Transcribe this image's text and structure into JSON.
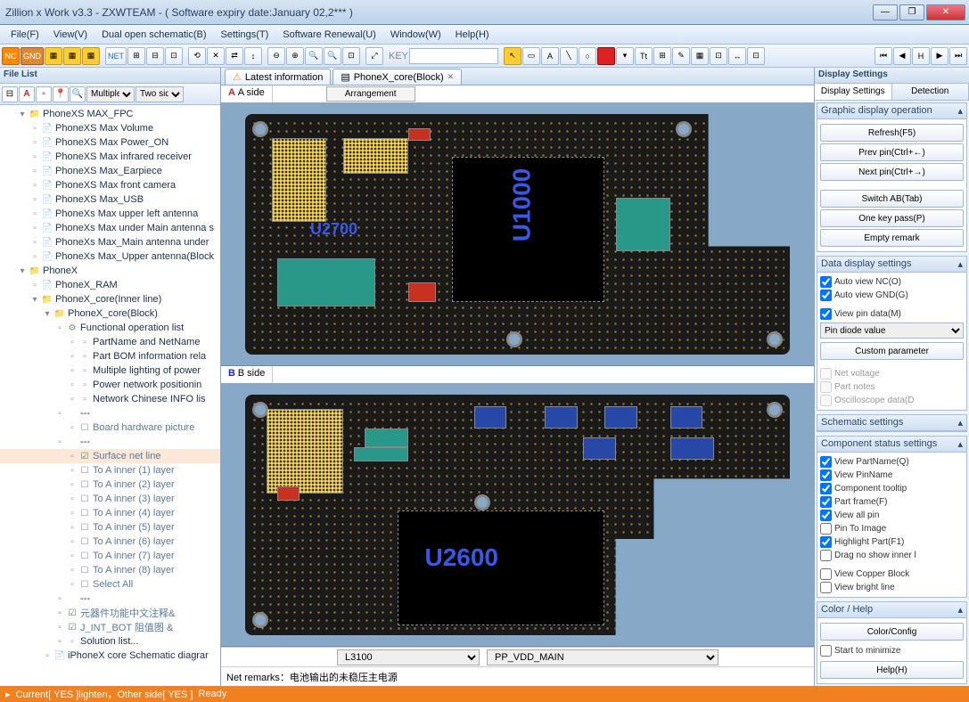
{
  "window": {
    "title": "Zillion x Work v3.3 - ZXWTEAM - ( Software expiry date:January 02,2*** )",
    "min": "—",
    "max": "❐",
    "close": "✕"
  },
  "menu": [
    "File(F)",
    "View(V)",
    "Dual open schematic(B)",
    "Settings(T)",
    "Software Renewal(U)",
    "Window(W)",
    "Help(H)"
  ],
  "toolbar": {
    "nc": "NC",
    "gnd": "GND",
    "net": "NET",
    "key": "KEY"
  },
  "filelist": {
    "title": "File List",
    "filter1": "Multiple f",
    "filter2": "Two side",
    "tree": [
      {
        "d": 1,
        "t": "folder",
        "open": true,
        "label": "PhoneXS MAX_FPC"
      },
      {
        "d": 2,
        "t": "doc",
        "label": "PhoneXS Max Volume"
      },
      {
        "d": 2,
        "t": "doc",
        "label": "PhoneXS Max Power_ON"
      },
      {
        "d": 2,
        "t": "doc",
        "label": "PhoneXS Max infrared receiver"
      },
      {
        "d": 2,
        "t": "doc",
        "label": "PhoneXS Max_Earpiece"
      },
      {
        "d": 2,
        "t": "doc",
        "label": "PhoneXS Max front camera"
      },
      {
        "d": 2,
        "t": "doc",
        "label": "PhoneXS Max_USB"
      },
      {
        "d": 2,
        "t": "doc",
        "label": "PhoneXs Max upper left antenna"
      },
      {
        "d": 2,
        "t": "doc",
        "label": "PhoneXs Max under Main antenna s"
      },
      {
        "d": 2,
        "t": "doc",
        "label": "PhoneXs Max_Main antenna under"
      },
      {
        "d": 2,
        "t": "doc",
        "label": "PhoneXs Max_Upper antenna(Block"
      },
      {
        "d": 1,
        "t": "folder",
        "open": true,
        "label": "PhoneX"
      },
      {
        "d": 2,
        "t": "doc",
        "label": "PhoneX_RAM"
      },
      {
        "d": 2,
        "t": "folder",
        "open": true,
        "label": "PhoneX_core(Inner line)"
      },
      {
        "d": 3,
        "t": "folder",
        "open": true,
        "label": "PhoneX_core(Block)"
      },
      {
        "d": 4,
        "t": "gear",
        "open": true,
        "label": "Functional operation list"
      },
      {
        "d": 5,
        "t": "item",
        "label": "PartName and NetName"
      },
      {
        "d": 5,
        "t": "item",
        "label": "Part BOM information rela"
      },
      {
        "d": 5,
        "t": "item",
        "label": "Multiple lighting of power"
      },
      {
        "d": 5,
        "t": "item",
        "label": "Power network positionin"
      },
      {
        "d": 5,
        "t": "item",
        "label": "Network Chinese INFO lis"
      },
      {
        "d": 4,
        "t": "dash",
        "label": "---"
      },
      {
        "d": 5,
        "t": "box",
        "label": "Board hardware picture"
      },
      {
        "d": 4,
        "t": "dash",
        "label": "---"
      },
      {
        "d": 5,
        "t": "chk",
        "sel": true,
        "label": "Surface net line"
      },
      {
        "d": 5,
        "t": "box",
        "label": "To A inner (1) layer"
      },
      {
        "d": 5,
        "t": "box",
        "label": "To A inner (2) layer"
      },
      {
        "d": 5,
        "t": "box",
        "label": "To A inner (3) layer"
      },
      {
        "d": 5,
        "t": "box",
        "label": "To A inner (4) layer"
      },
      {
        "d": 5,
        "t": "box",
        "label": "To A inner (5) layer"
      },
      {
        "d": 5,
        "t": "box",
        "label": "To A inner (6) layer"
      },
      {
        "d": 5,
        "t": "box",
        "label": "To A inner (7) layer"
      },
      {
        "d": 5,
        "t": "box",
        "label": "To A inner (8) layer"
      },
      {
        "d": 5,
        "t": "box",
        "label": "Select All"
      },
      {
        "d": 4,
        "t": "dash",
        "label": "---"
      },
      {
        "d": 4,
        "t": "chk",
        "label": "元器件功能中文注释&"
      },
      {
        "d": 4,
        "t": "chk",
        "label": "J_INT_BOT 阻值图  &"
      },
      {
        "d": 4,
        "t": "item",
        "label": "Solution list..."
      },
      {
        "d": 3,
        "t": "doc",
        "label": "iPhoneX core Schematic diagrar"
      }
    ]
  },
  "doctabs": [
    {
      "label": "Latest information",
      "icon": "warn"
    },
    {
      "label": "PhoneX_core(Block)",
      "icon": "doc",
      "close": true
    }
  ],
  "views": {
    "aside": "A side",
    "bside": "B side",
    "arrangement": "Arrangement",
    "u1000": "U1000",
    "u2600": "U2600",
    "u2700": "U2700"
  },
  "bottombar": {
    "part": "L3100",
    "net": "PP_VDD_MAIN"
  },
  "remarks": {
    "label": "Net remarks：",
    "text": "电池输出的未稳压主电源"
  },
  "right": {
    "title": "Display Settings",
    "tab1": "Display Settings",
    "tab2": "Detection",
    "g1": {
      "title": "Graphic display operation",
      "btns": [
        "Refresh(F5)",
        "Prev pin(Ctrl+←)",
        "Next pin(Ctrl+→)",
        "Switch AB(Tab)",
        "One key pass(P)",
        "Empty remark"
      ]
    },
    "g2": {
      "title": "Data display settings",
      "chks": [
        {
          "label": "Auto view NC(O)",
          "on": true
        },
        {
          "label": "Auto view GND(G)",
          "on": true
        },
        {
          "label": "View pin data(M)",
          "on": true
        }
      ],
      "sel": "Pin diode value",
      "btn": "Custom parameter",
      "dis": [
        "Net voltage",
        "Part notes",
        "Oscilloscope data(D"
      ]
    },
    "g3": {
      "title": "Schematic settings"
    },
    "g4": {
      "title": "Component status settings",
      "chks": [
        {
          "label": "View PartName(Q)",
          "on": true
        },
        {
          "label": "View PinName",
          "on": true
        },
        {
          "label": "Component tooltip",
          "on": true
        },
        {
          "label": "Part frame(F)",
          "on": true
        },
        {
          "label": "View all pin",
          "on": true
        },
        {
          "label": "Pin To Image",
          "on": false
        },
        {
          "label": "Highlight Part(F1)",
          "on": true
        },
        {
          "label": "Drag no show inner l",
          "on": false
        },
        {
          "label": "View Copper Block",
          "on": false
        },
        {
          "label": "View bright line",
          "on": false
        }
      ]
    },
    "g5": {
      "title": "Color / Help",
      "btns": [
        "Color/Config",
        "Help(H)"
      ],
      "chk": {
        "label": "Start to minimize",
        "on": false
      }
    }
  },
  "status": {
    "current": "Current[ YES ]lighten，Other side[ YES ]",
    "ready": "Ready"
  }
}
